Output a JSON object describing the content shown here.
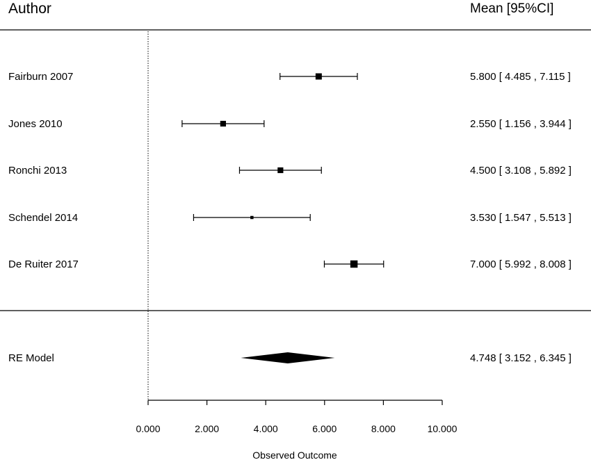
{
  "header": {
    "author_label": "Author",
    "estimate_label": "Mean [95%CI]"
  },
  "chart_data": {
    "type": "forest",
    "xlabel": "Observed Outcome",
    "xlim": [
      0,
      10
    ],
    "x_ticks": [
      "0.000",
      "2.000",
      "4.000",
      "6.000",
      "8.000",
      "10.000"
    ],
    "x_tick_values": [
      0,
      2,
      4,
      6,
      8,
      10
    ],
    "reference_line": 0,
    "studies": [
      {
        "author": "Fairburn 2007",
        "mean": 5.8,
        "lower": 4.485,
        "upper": 7.115,
        "label": "5.800 [ 4.485 , 7.115 ]",
        "weight": 0.7
      },
      {
        "author": "Jones 2010",
        "mean": 2.55,
        "lower": 1.156,
        "upper": 3.944,
        "label": "2.550 [ 1.156 , 3.944 ]",
        "weight": 0.62
      },
      {
        "author": "Ronchi 2013",
        "mean": 4.5,
        "lower": 3.108,
        "upper": 5.892,
        "label": "4.500 [ 3.108 , 5.892 ]",
        "weight": 0.62
      },
      {
        "author": "Schendel 2014",
        "mean": 3.53,
        "lower": 1.547,
        "upper": 5.513,
        "label": "3.530 [ 1.547 , 5.513 ]",
        "weight": 0.25
      },
      {
        "author": "De Ruiter 2017",
        "mean": 7.0,
        "lower": 5.992,
        "upper": 8.008,
        "label": "7.000 [ 5.992 , 8.008 ]",
        "weight": 0.85
      }
    ],
    "summary": {
      "author": "RE Model",
      "mean": 4.748,
      "lower": 3.152,
      "upper": 6.345,
      "label": "4.748 [ 3.152 , 6.345 ]"
    }
  }
}
